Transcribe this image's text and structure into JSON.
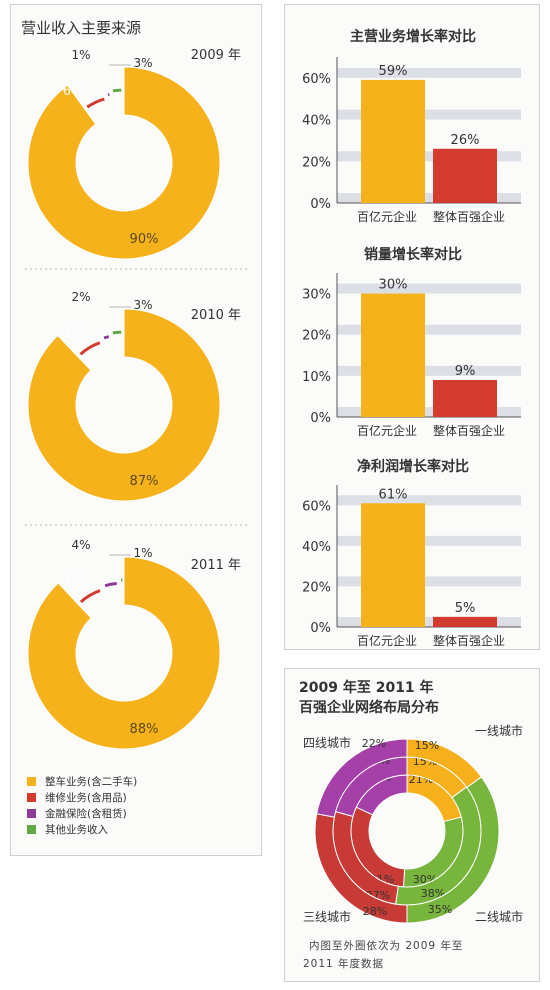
{
  "colors": {
    "orange": "#f6b21a",
    "red": "#d23b2e",
    "purple": "#8e3a98",
    "green": "#5fa844",
    "gridband": "#dcdfe6",
    "axis": "#555555",
    "net_purple": "#a540a8",
    "net_orange": "#f5b01c",
    "net_green": "#77b53d",
    "net_red": "#c83a35"
  },
  "left_panel": {
    "title": "营业收入主要来源",
    "legend": [
      {
        "label": "整车业务(含二手车)",
        "color": "#f6b21a"
      },
      {
        "label": "维修业务(含用品)",
        "color": "#d23b2e"
      },
      {
        "label": "金融保险(含租赁)",
        "color": "#8e3a98"
      },
      {
        "label": "其他业务收入",
        "color": "#5fa844"
      }
    ]
  },
  "network": {
    "title_line1": "2009 年至 2011 年",
    "title_line2": "百强企业网络布局分布",
    "note_line1": "内图至外圈依次为 2009 年至",
    "note_line2": "2011 年度数据"
  },
  "chart_data": [
    {
      "type": "pie",
      "variant": "donut",
      "title": "营业收入主要来源",
      "year_label": "2009 年",
      "slices": [
        {
          "name": "整车业务(含二手车)",
          "value": 90,
          "label": "90%"
        },
        {
          "name": "维修业务(含用品)",
          "value": 6,
          "label": "6%"
        },
        {
          "name": "金融保险(含租赁)",
          "value": 1,
          "label": "1%"
        },
        {
          "name": "其他业务收入",
          "value": 3,
          "label": "3%"
        }
      ]
    },
    {
      "type": "pie",
      "variant": "donut",
      "year_label": "2010 年",
      "slices": [
        {
          "name": "整车业务(含二手车)",
          "value": 87,
          "label": "87%"
        },
        {
          "name": "维修业务(含用品)",
          "value": 7,
          "label": "7%"
        },
        {
          "name": "金融保险(含租赁)",
          "value": 2,
          "label": "2%"
        },
        {
          "name": "其他业务收入",
          "value": 3,
          "label": "3%"
        }
      ]
    },
    {
      "type": "pie",
      "variant": "donut",
      "year_label": "2011 年",
      "slices": [
        {
          "name": "整车业务(含二手车)",
          "value": 88,
          "label": "88%"
        },
        {
          "name": "维修业务(含用品)",
          "value": 7,
          "label": "7%"
        },
        {
          "name": "金融保险(含租赁)",
          "value": 4,
          "label": "4%"
        },
        {
          "name": "其他业务收入",
          "value": 1,
          "label": "1%"
        }
      ]
    },
    {
      "type": "bar",
      "title": "主营业务增长率对比",
      "categories": [
        "百亿元企业",
        "整体百强企业"
      ],
      "values": [
        59,
        26
      ],
      "value_labels": [
        "59%",
        "26%"
      ],
      "yticks": [
        "0%",
        "20%",
        "40%",
        "60%"
      ],
      "ylim": [
        0,
        70
      ]
    },
    {
      "type": "bar",
      "title": "销量增长率对比",
      "categories": [
        "百亿元企业",
        "整体百强企业"
      ],
      "values": [
        30,
        9
      ],
      "value_labels": [
        "30%",
        "9%"
      ],
      "yticks": [
        "0%",
        "10%",
        "20%",
        "30%"
      ],
      "ylim": [
        0,
        35
      ]
    },
    {
      "type": "bar",
      "title": "净利润增长率对比",
      "categories": [
        "百亿元企业",
        "整体百强企业"
      ],
      "values": [
        61,
        5
      ],
      "value_labels": [
        "61%",
        "5%"
      ],
      "yticks": [
        "0%",
        "20%",
        "40%",
        "60%"
      ],
      "ylim": [
        0,
        70
      ]
    },
    {
      "type": "pie",
      "variant": "nested-donut",
      "title": "百强企业网络布局分布",
      "categories": [
        "一线城市",
        "二线城市",
        "三线城市",
        "四线城市"
      ],
      "rings": [
        {
          "year": "2009",
          "values": [
            21,
            30,
            31,
            18
          ],
          "labels": [
            "21%",
            "30%",
            "31%",
            "18%"
          ]
        },
        {
          "year": "2010",
          "values": [
            15,
            38,
            27,
            21
          ],
          "labels": [
            "15%",
            "38%",
            "27%",
            "21%"
          ]
        },
        {
          "year": "2011",
          "values": [
            15,
            35,
            28,
            22
          ],
          "labels": [
            "15%",
            "35%",
            "28%",
            "22%"
          ]
        }
      ]
    }
  ]
}
